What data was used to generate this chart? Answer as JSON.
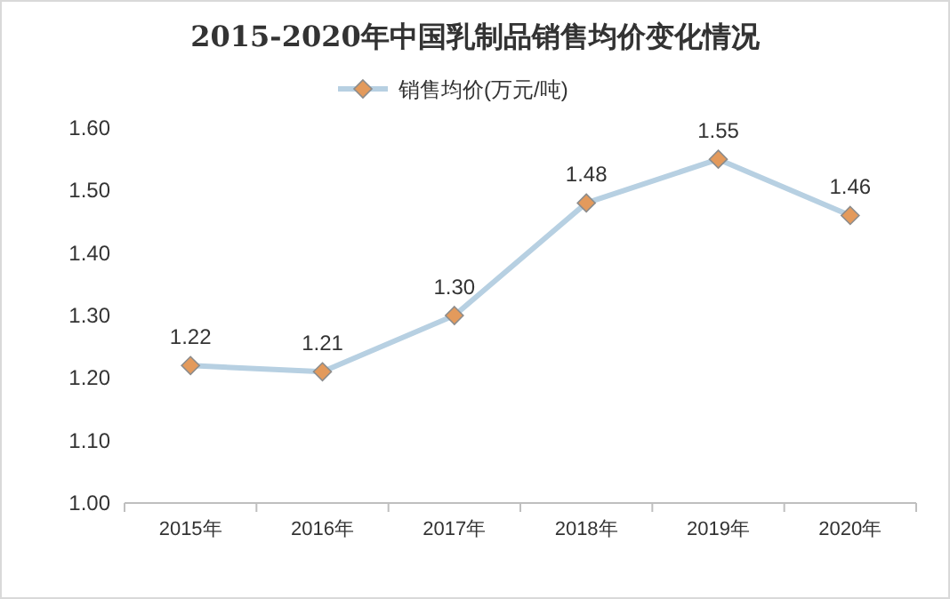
{
  "chart_data": {
    "type": "line",
    "title": "2015-2020年中国乳制品销售均价变化情况",
    "categories": [
      "2015年",
      "2016年",
      "2017年",
      "2018年",
      "2019年",
      "2020年"
    ],
    "series": [
      {
        "name": "销售均价(万元/吨)",
        "color": "#b7d0e2",
        "values": [
          1.22,
          1.21,
          1.3,
          1.48,
          1.55,
          1.46
        ],
        "value_labels": [
          "1.22",
          "1.21",
          "1.30",
          "1.48",
          "1.55",
          "1.46"
        ],
        "colors": [
          "#e39a5c",
          "#e39a5c",
          "#e39a5c",
          "#e39a5c",
          "#e39a5c",
          "#e39a5c"
        ]
      }
    ],
    "marker": "diamond",
    "legend": "top",
    "grid": false,
    "ylim": [
      1.0,
      1.6
    ],
    "yticks": [
      {
        "value": 1.0,
        "label": "1.00"
      },
      {
        "value": 1.1,
        "label": "1.10"
      },
      {
        "value": 1.2,
        "label": "1.20"
      },
      {
        "value": 1.3,
        "label": "1.30"
      },
      {
        "value": 1.4,
        "label": "1.40"
      },
      {
        "value": 1.5,
        "label": "1.50"
      },
      {
        "value": 1.6,
        "label": "1.60"
      }
    ]
  }
}
